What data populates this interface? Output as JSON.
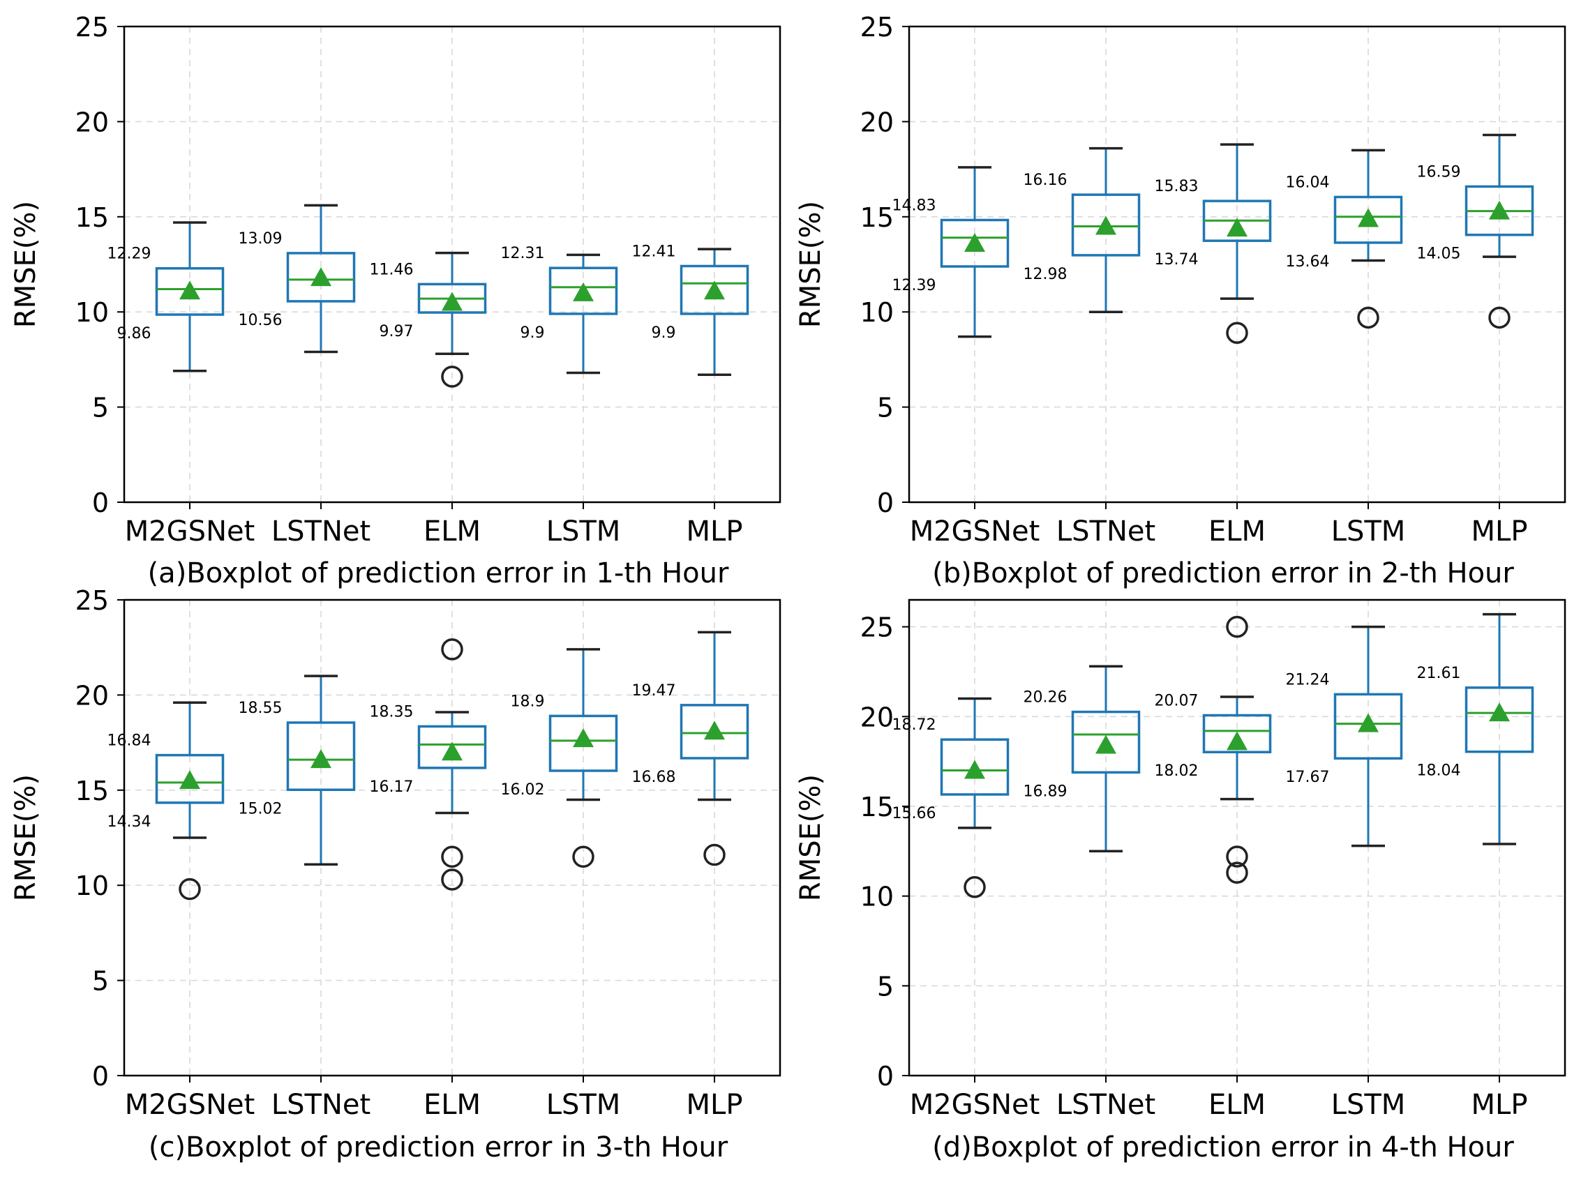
{
  "colors": {
    "box": "#1f77b4",
    "median": "#2ca02c",
    "mean": "#2ca02c",
    "whisker": "#1f77b4",
    "cap": "#222222",
    "grid": "#d9d9d9",
    "frame": "#000000",
    "text": "#000000"
  },
  "chart_data": [
    {
      "type": "boxplot",
      "title": "(a)Boxplot of prediction error in 1-th Hour",
      "ylabel": "RMSE(%)",
      "ylim": [
        0,
        25
      ],
      "yticks": [
        "0",
        "5",
        "10",
        "15",
        "20",
        "25"
      ],
      "categories": [
        "M2GSNet",
        "LSTNet",
        "ELM",
        "LSTM",
        "MLP"
      ],
      "boxes": [
        {
          "whislo": 6.9,
          "q1": 9.86,
          "med": 11.2,
          "q3": 12.29,
          "whishi": 14.7,
          "mean": 11.1,
          "fliers": [],
          "q1_label": "9.86",
          "q3_label": "12.29"
        },
        {
          "whislo": 7.9,
          "q1": 10.56,
          "med": 11.7,
          "q3": 13.09,
          "whishi": 15.6,
          "mean": 11.8,
          "fliers": [],
          "q1_label": "10.56",
          "q3_label": "13.09"
        },
        {
          "whislo": 7.8,
          "q1": 9.97,
          "med": 10.7,
          "q3": 11.46,
          "whishi": 13.1,
          "mean": 10.5,
          "fliers": [
            6.6
          ],
          "q1_label": "9.97",
          "q3_label": "11.46"
        },
        {
          "whislo": 6.8,
          "q1": 9.9,
          "med": 11.3,
          "q3": 12.31,
          "whishi": 13.0,
          "mean": 11.0,
          "fliers": [],
          "q1_label": "9.9",
          "q3_label": "12.31"
        },
        {
          "whislo": 6.7,
          "q1": 9.9,
          "med": 11.5,
          "q3": 12.41,
          "whishi": 13.3,
          "mean": 11.1,
          "fliers": [],
          "q1_label": "9.9",
          "q3_label": "12.41"
        }
      ]
    },
    {
      "type": "boxplot",
      "title": "(b)Boxplot of prediction error in 2-th Hour",
      "ylabel": "RMSE(%)",
      "ylim": [
        0,
        25
      ],
      "yticks": [
        "0",
        "5",
        "10",
        "15",
        "20",
        "25"
      ],
      "categories": [
        "M2GSNet",
        "LSTNet",
        "ELM",
        "LSTM",
        "MLP"
      ],
      "boxes": [
        {
          "whislo": 8.7,
          "q1": 12.39,
          "med": 13.9,
          "q3": 14.83,
          "whishi": 17.6,
          "mean": 13.6,
          "fliers": [],
          "q1_label": "12.39",
          "q3_label": "14.83"
        },
        {
          "whislo": 10.0,
          "q1": 12.98,
          "med": 14.5,
          "q3": 16.16,
          "whishi": 18.6,
          "mean": 14.5,
          "fliers": [],
          "q1_label": "12.98",
          "q3_label": "16.16"
        },
        {
          "whislo": 10.7,
          "q1": 13.74,
          "med": 14.8,
          "q3": 15.83,
          "whishi": 18.8,
          "mean": 14.4,
          "fliers": [
            8.9
          ],
          "q1_label": "13.74",
          "q3_label": "15.83"
        },
        {
          "whislo": 12.7,
          "q1": 13.64,
          "med": 15.0,
          "q3": 16.04,
          "whishi": 18.5,
          "mean": 14.9,
          "fliers": [
            9.7
          ],
          "q1_label": "13.64",
          "q3_label": "16.04"
        },
        {
          "whislo": 12.9,
          "q1": 14.05,
          "med": 15.3,
          "q3": 16.59,
          "whishi": 19.3,
          "mean": 15.3,
          "fliers": [
            9.7
          ],
          "q1_label": "14.05",
          "q3_label": "16.59"
        }
      ]
    },
    {
      "type": "boxplot",
      "title": "(c)Boxplot of prediction error in 3-th Hour",
      "ylabel": "RMSE(%)",
      "ylim": [
        0,
        25
      ],
      "yticks": [
        "0",
        "5",
        "10",
        "15",
        "20",
        "25"
      ],
      "categories": [
        "M2GSNet",
        "LSTNet",
        "ELM",
        "LSTM",
        "MLP"
      ],
      "boxes": [
        {
          "whislo": 12.5,
          "q1": 14.34,
          "med": 15.4,
          "q3": 16.84,
          "whishi": 19.6,
          "mean": 15.5,
          "fliers": [
            9.8
          ],
          "q1_label": "14.34",
          "q3_label": "16.84"
        },
        {
          "whislo": 11.1,
          "q1": 15.02,
          "med": 16.6,
          "q3": 18.55,
          "whishi": 21.0,
          "mean": 16.6,
          "fliers": [],
          "q1_label": "15.02",
          "q3_label": "18.55"
        },
        {
          "whislo": 13.8,
          "q1": 16.17,
          "med": 17.4,
          "q3": 18.35,
          "whishi": 19.1,
          "mean": 17.0,
          "fliers": [
            22.4,
            11.5,
            10.3
          ],
          "q1_label": "16.17",
          "q3_label": "18.35"
        },
        {
          "whislo": 14.5,
          "q1": 16.02,
          "med": 17.6,
          "q3": 18.9,
          "whishi": 22.4,
          "mean": 17.7,
          "fliers": [
            11.5
          ],
          "q1_label": "16.02",
          "q3_label": "18.9"
        },
        {
          "whislo": 14.5,
          "q1": 16.68,
          "med": 18.0,
          "q3": 19.47,
          "whishi": 23.3,
          "mean": 18.1,
          "fliers": [
            11.6
          ],
          "q1_label": "16.68",
          "q3_label": "19.47"
        }
      ]
    },
    {
      "type": "boxplot",
      "title": "(d)Boxplot of prediction error in 4-th Hour",
      "ylabel": "RMSE(%)",
      "ylim": [
        0,
        26.5
      ],
      "yticks": [
        "0",
        "5",
        "10",
        "15",
        "20",
        "25"
      ],
      "categories": [
        "M2GSNet",
        "LSTNet",
        "ELM",
        "LSTM",
        "MLP"
      ],
      "boxes": [
        {
          "whislo": 13.8,
          "q1": 15.66,
          "med": 17.0,
          "q3": 18.72,
          "whishi": 21.0,
          "mean": 17.0,
          "fliers": [
            10.5
          ],
          "q1_label": "15.66",
          "q3_label": "18.72"
        },
        {
          "whislo": 12.5,
          "q1": 16.89,
          "med": 19.0,
          "q3": 20.26,
          "whishi": 22.8,
          "mean": 18.4,
          "fliers": [],
          "q1_label": "16.89",
          "q3_label": "20.26"
        },
        {
          "whislo": 15.4,
          "q1": 18.02,
          "med": 19.2,
          "q3": 20.07,
          "whishi": 21.1,
          "mean": 18.6,
          "fliers": [
            25.0,
            12.2,
            11.3
          ],
          "q1_label": "18.02",
          "q3_label": "20.07"
        },
        {
          "whislo": 12.8,
          "q1": 17.67,
          "med": 19.6,
          "q3": 21.24,
          "whishi": 25.0,
          "mean": 19.6,
          "fliers": [],
          "q1_label": "17.67",
          "q3_label": "21.24"
        },
        {
          "whislo": 12.9,
          "q1": 18.04,
          "med": 20.2,
          "q3": 21.61,
          "whishi": 25.7,
          "mean": 20.2,
          "fliers": [],
          "q1_label": "18.04",
          "q3_label": "21.61"
        }
      ]
    }
  ]
}
